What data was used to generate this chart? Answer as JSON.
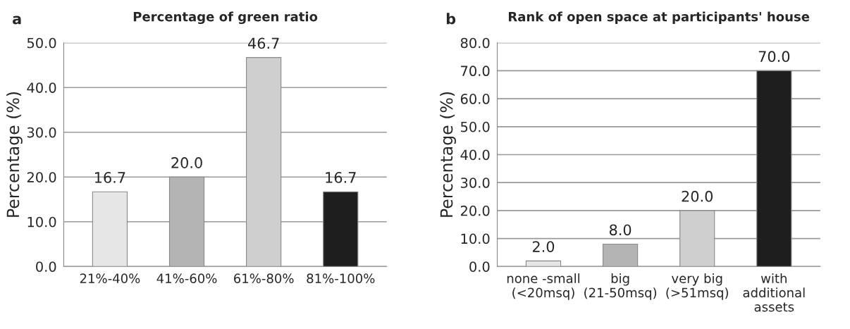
{
  "chart_data": [
    {
      "type": "bar",
      "title": "Percentage of green ratio",
      "ylabel": "Percentage (%)",
      "annotations": [
        "a"
      ],
      "categories": [
        "21%-40%",
        "41%-60%",
        "61%-80%",
        "81%-100%"
      ],
      "values": [
        16.7,
        20.0,
        46.7,
        16.7
      ],
      "value_labels": [
        "16.7",
        "20.0",
        "46.7",
        "16.7"
      ],
      "colors": [
        "#e6e6e6",
        "#b4b4b4",
        "#cfcfcf",
        "#1e1e1e"
      ],
      "ylim": [
        0,
        50
      ],
      "yticks": [
        {
          "value": 0,
          "label": "0.0"
        },
        {
          "value": 10,
          "label": "10.0"
        },
        {
          "value": 20,
          "label": "20.0"
        },
        {
          "value": 30,
          "label": "30.0"
        },
        {
          "value": 40,
          "label": "40.0"
        },
        {
          "value": 50,
          "label": "50.0"
        }
      ],
      "grid": "y"
    },
    {
      "type": "bar",
      "title": "Rank of open space at participants' house",
      "ylabel": "Percentage (%)",
      "annotations": [
        "b"
      ],
      "categories": [
        "none -small\n(<20msq)",
        "big\n(21-50msq)",
        "very big\n(>51msq)",
        "with\nadditional\nassets"
      ],
      "values": [
        2.0,
        8.0,
        20.0,
        70.0
      ],
      "value_labels": [
        "2.0",
        "8.0",
        "20.0",
        "70.0"
      ],
      "colors": [
        "#e6e6e6",
        "#b4b4b4",
        "#cfcfcf",
        "#1e1e1e"
      ],
      "ylim": [
        0,
        80
      ],
      "yticks": [
        {
          "value": 0,
          "label": "0.0"
        },
        {
          "value": 10,
          "label": "10.0"
        },
        {
          "value": 20,
          "label": "20.0"
        },
        {
          "value": 30,
          "label": "30.0"
        },
        {
          "value": 40,
          "label": "40.0"
        },
        {
          "value": 50,
          "label": "50.0"
        },
        {
          "value": 60,
          "label": "60.0"
        },
        {
          "value": 70,
          "label": "70.0"
        },
        {
          "value": 80,
          "label": "80.0"
        }
      ],
      "grid": "y"
    }
  ]
}
